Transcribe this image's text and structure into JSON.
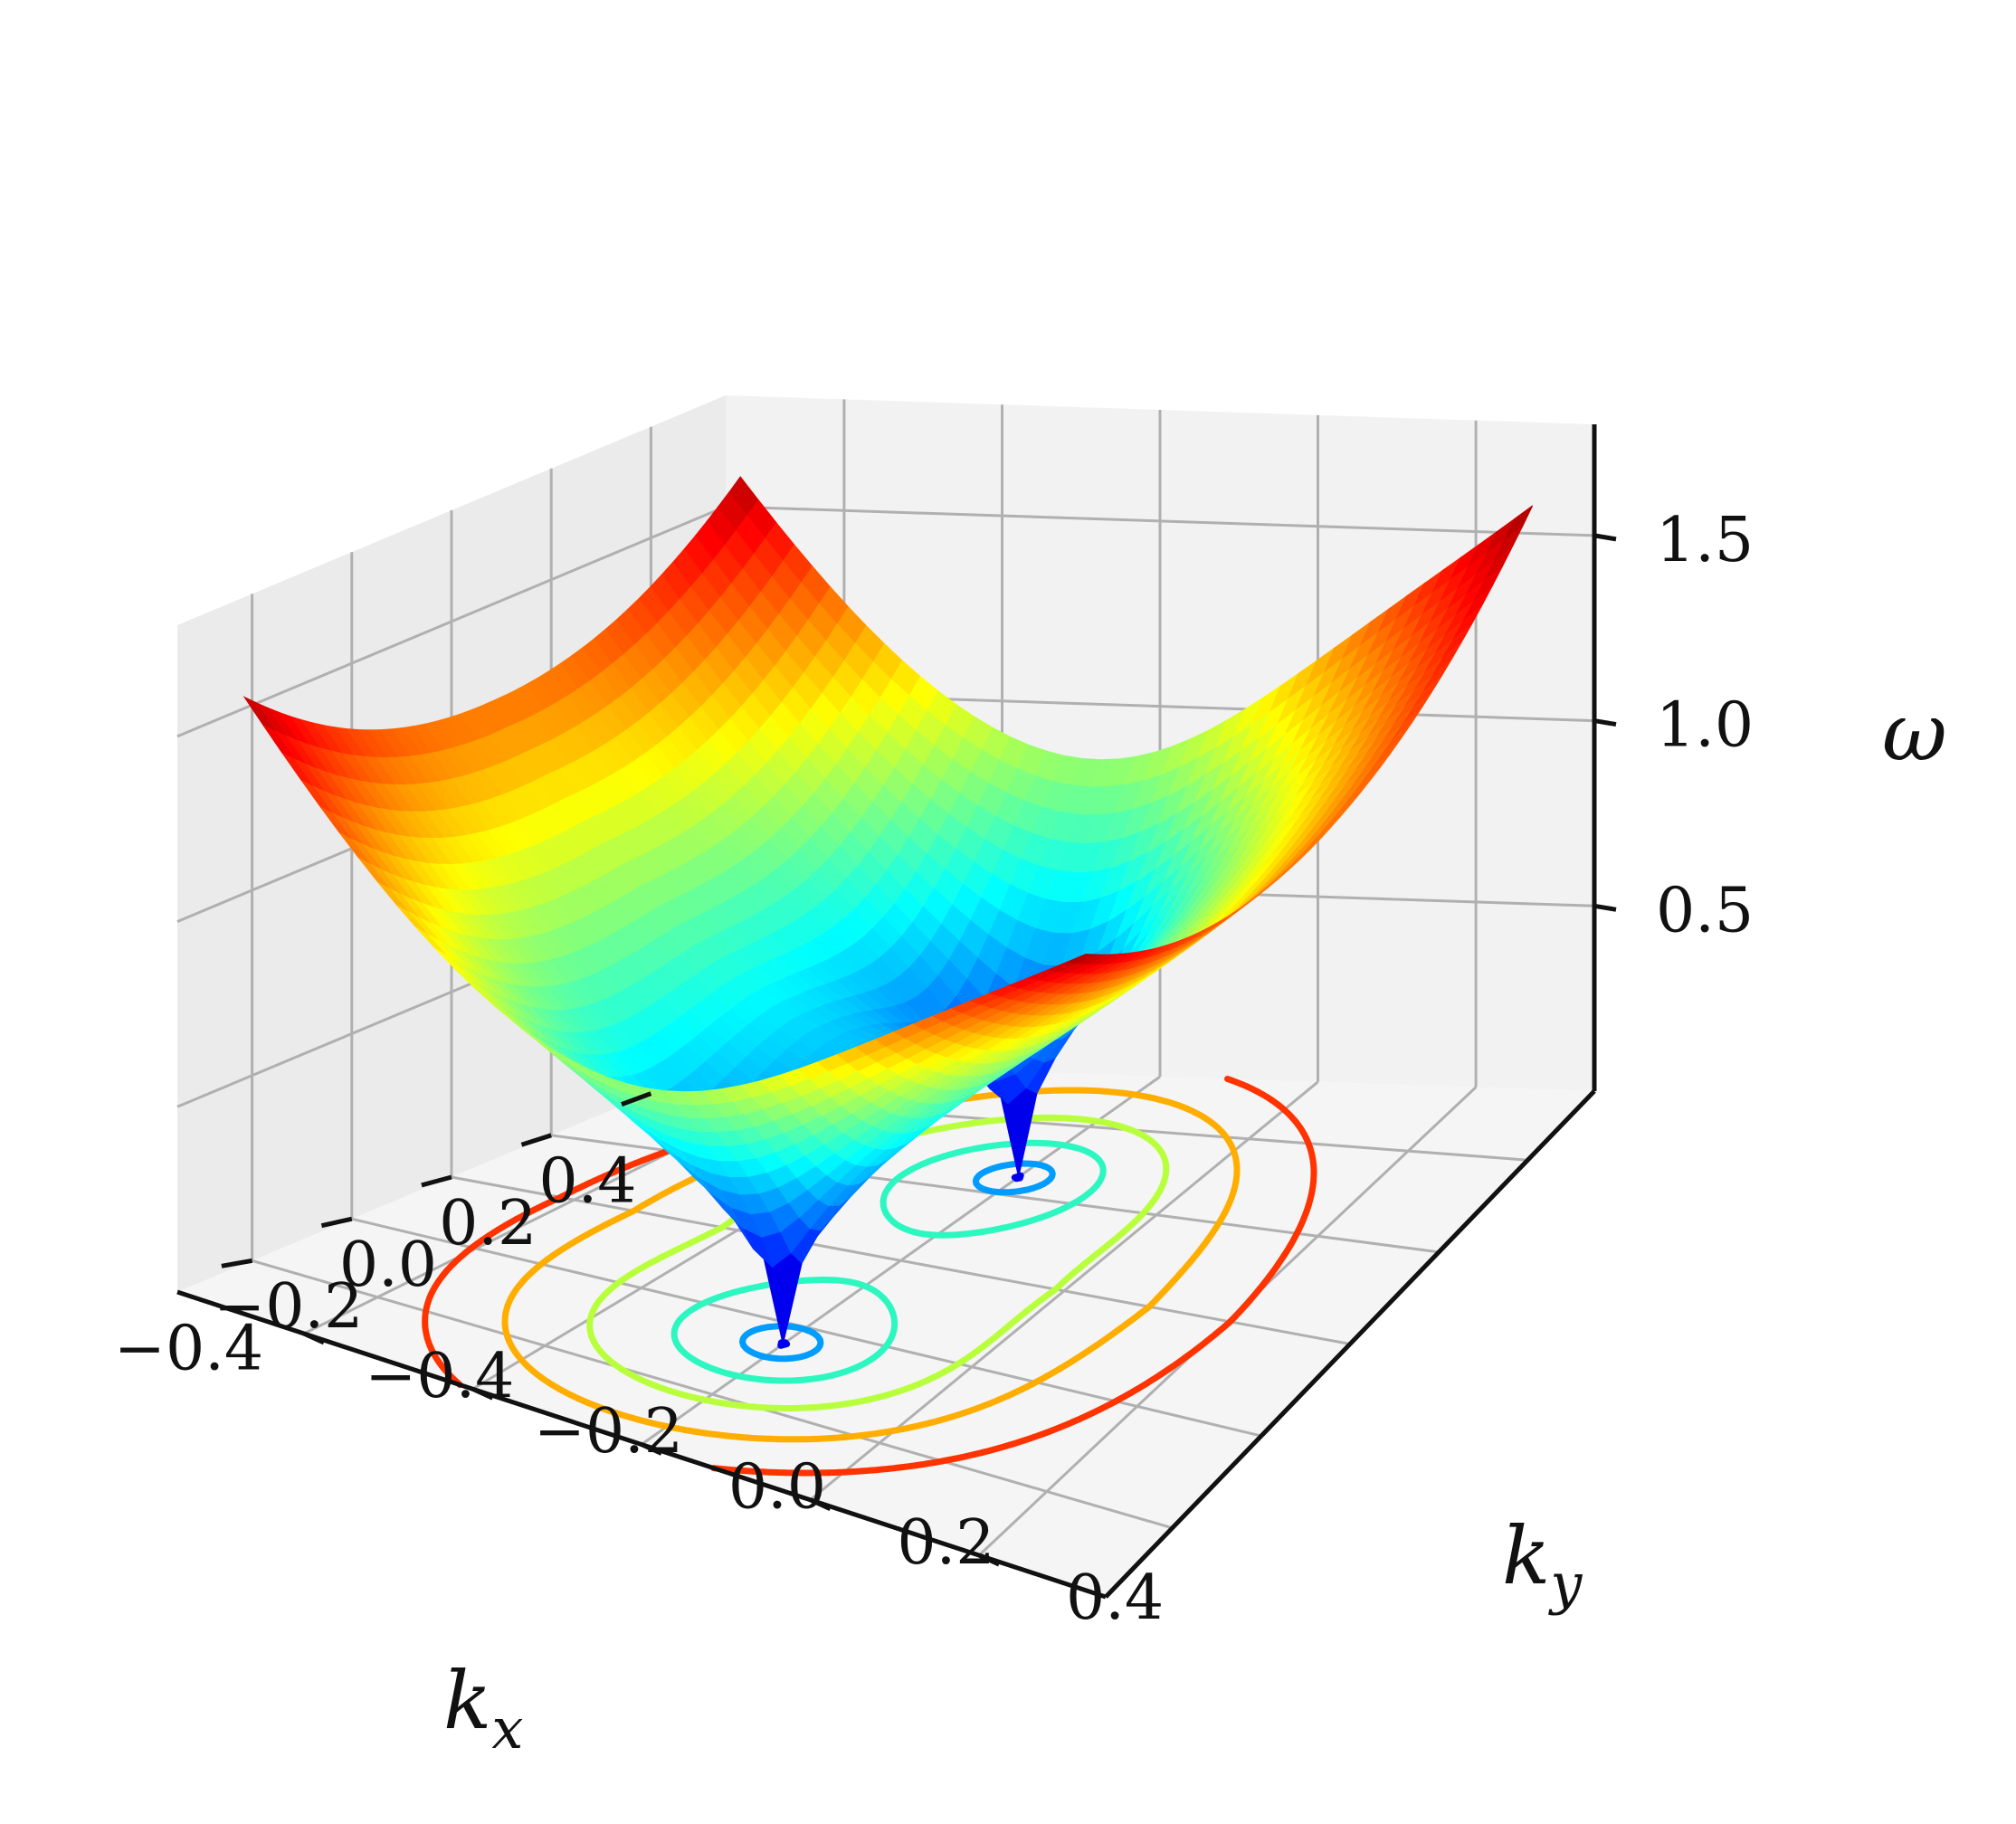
{
  "chart_data": {
    "type": "surface3d",
    "title": "",
    "colormap": "jet",
    "xlabel": "k",
    "xlabel_sub": "x",
    "ylabel": "k",
    "ylabel_sub": "y",
    "zlabel": "ω",
    "xlim": [
      -0.55,
      0.55
    ],
    "ylim": [
      -0.55,
      0.55
    ],
    "zlim": [
      0.0,
      1.8
    ],
    "x_ticks": [
      "−0.4",
      "−0.2",
      "0.0",
      "0.2",
      "0.4"
    ],
    "x_tick_values": [
      -0.4,
      -0.2,
      0.0,
      0.2,
      0.4
    ],
    "y_ticks": [
      "−0.4",
      "−0.2",
      "0.0",
      "0.2",
      "0.4"
    ],
    "y_tick_values": [
      -0.4,
      -0.2,
      0.0,
      0.2,
      0.4
    ],
    "z_ticks": [
      "0.5",
      "1.0",
      "1.5"
    ],
    "z_tick_values": [
      0.5,
      1.0,
      1.5
    ],
    "grid": true,
    "minima": [
      {
        "kx": -0.25,
        "ky": 0.0,
        "omega": 0.0
      },
      {
        "kx": 0.25,
        "ky": 0.0,
        "omega": 0.0
      }
    ],
    "contour_levels": [
      0.1,
      0.3,
      0.5,
      0.7,
      0.9,
      1.1
    ],
    "contour_colors": [
      "#0000ee",
      "#009cff",
      "#2cf7c0",
      "#b8ff3c",
      "#ffae00",
      "#ff3300"
    ]
  }
}
